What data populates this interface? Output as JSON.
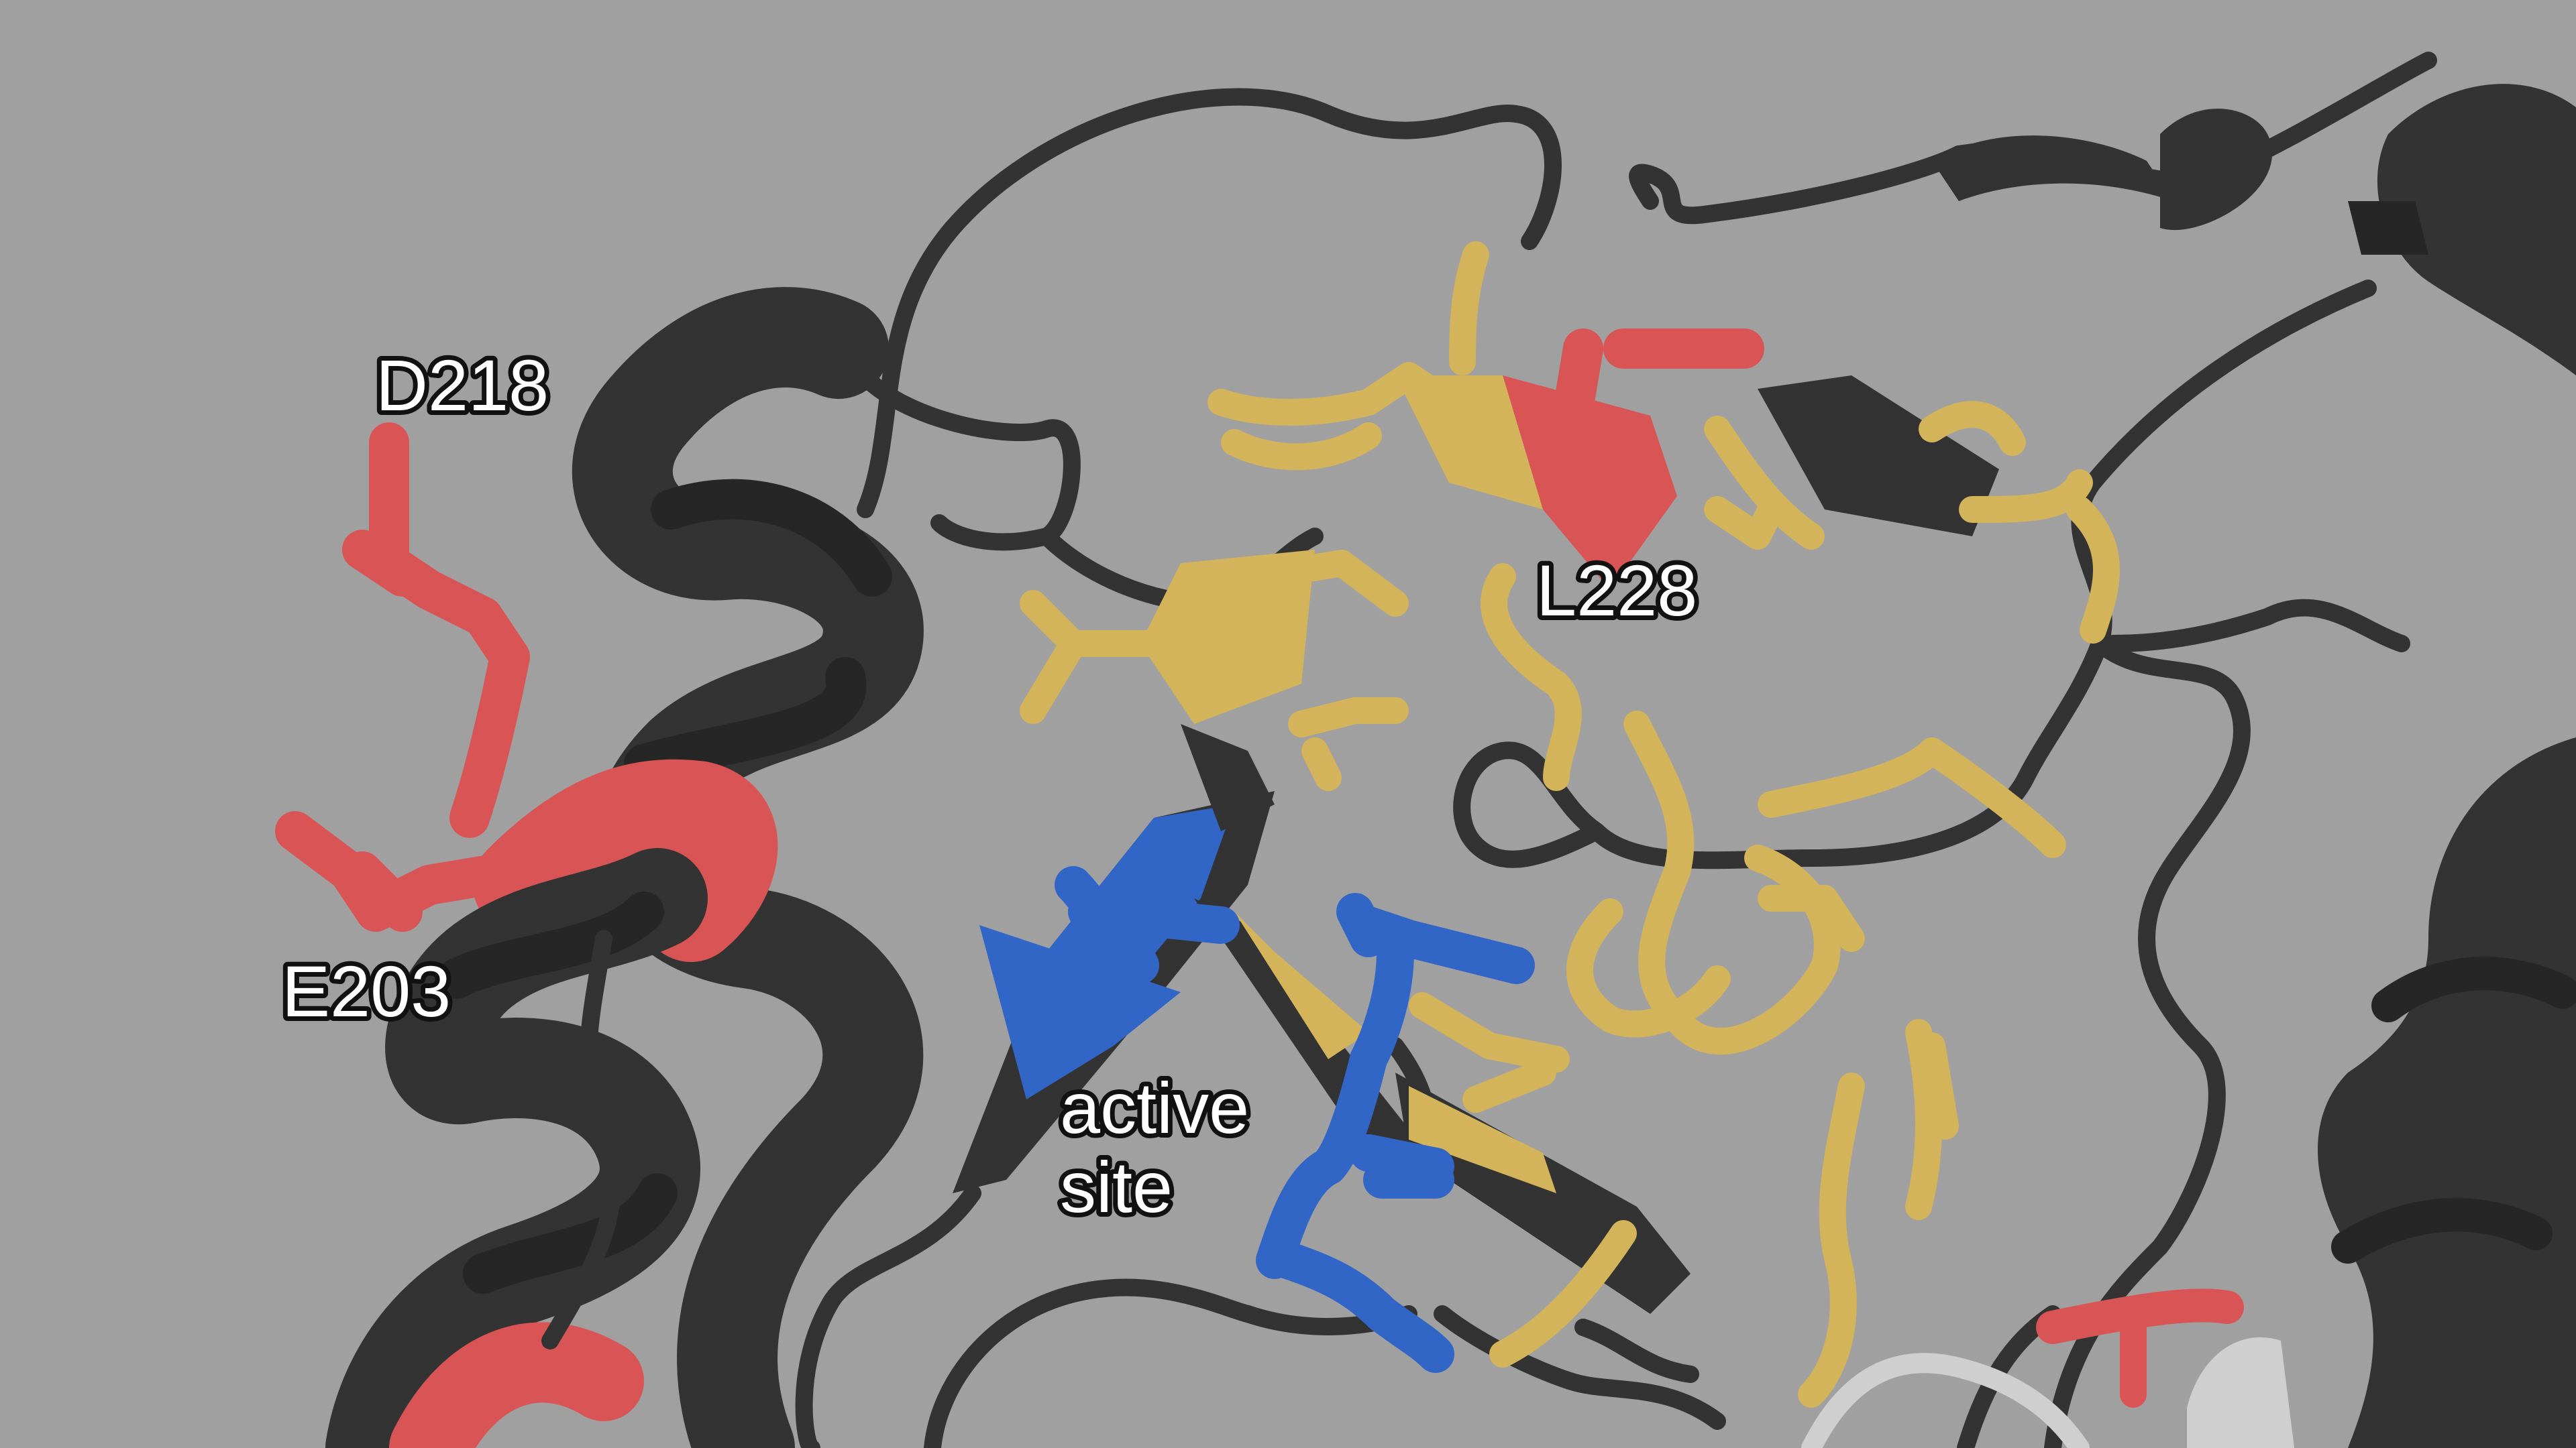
{
  "scene": {
    "background": "#a0a0a0",
    "colors": {
      "backbone": "#333333",
      "backbone_light": "#cfcfcf",
      "hydrophobic": "#d4b45a",
      "acidic": "#d95555",
      "active_site": "#3266c6"
    }
  },
  "labels": {
    "d218": "D218",
    "e203": "E203",
    "l228": "L228",
    "active_site_line1": "active",
    "active_site_line2": "site"
  }
}
